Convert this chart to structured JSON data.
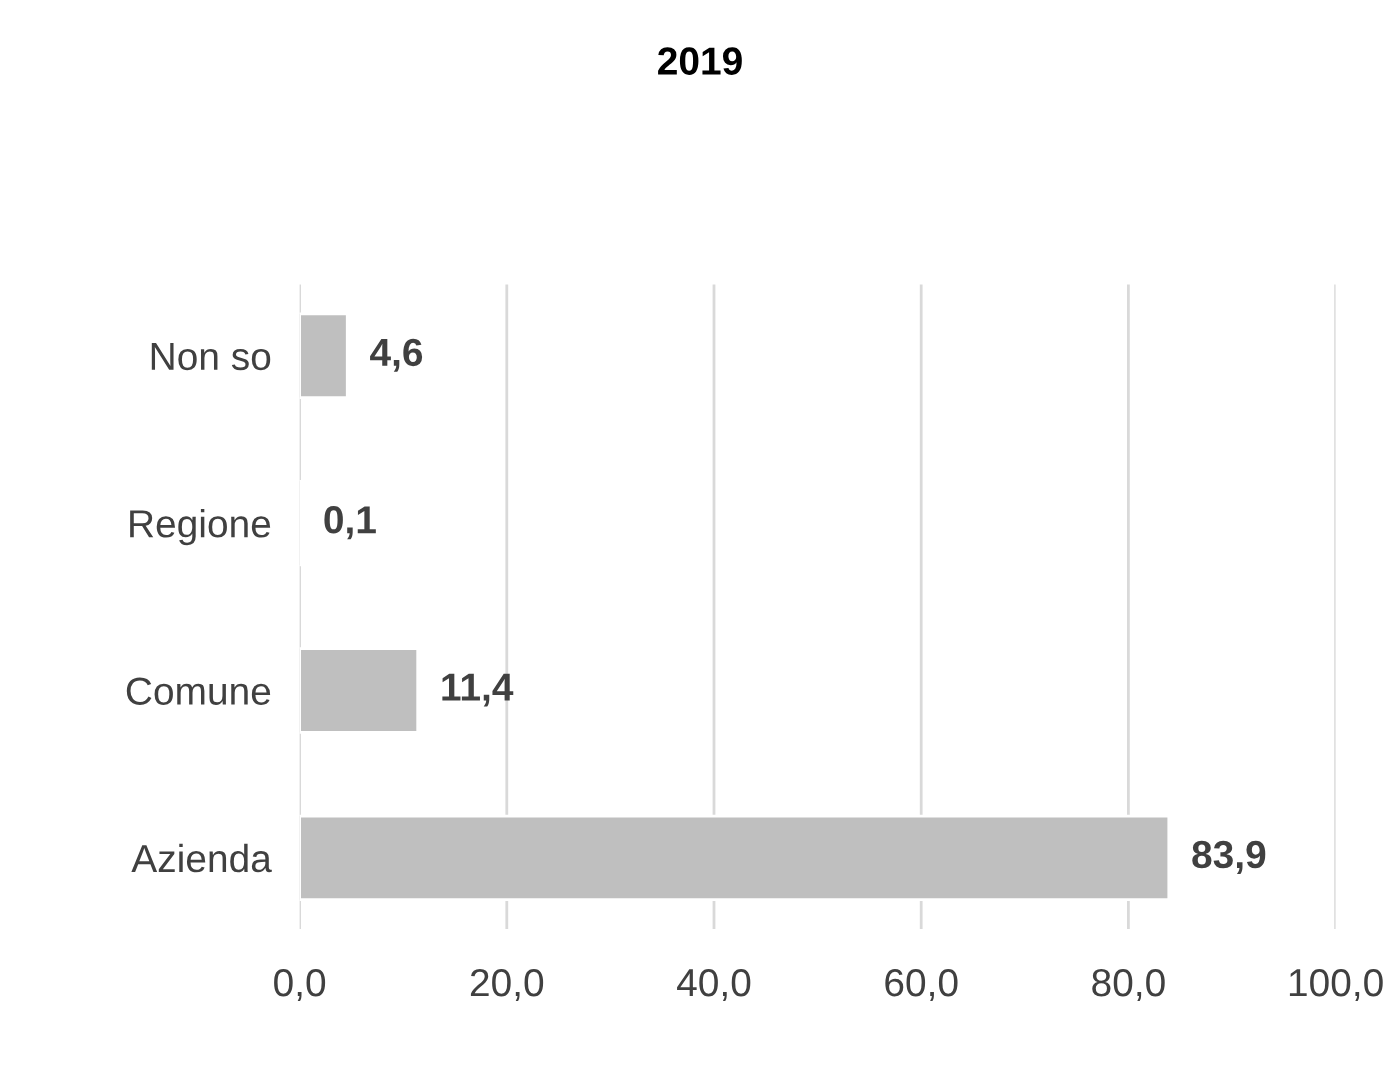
{
  "chart_data": {
    "type": "bar",
    "orientation": "horizontal",
    "title": "2019",
    "categories": [
      "Non so",
      "Regione",
      "Comune",
      "Azienda"
    ],
    "values": [
      4.6,
      0.1,
      11.4,
      83.9
    ],
    "value_labels": [
      "4,6",
      "0,1",
      "11,4",
      "83,9"
    ],
    "color": "#bfbfbf",
    "xlim": [
      0,
      100
    ],
    "xticks": [
      {
        "value": 0,
        "label": "0,0"
      },
      {
        "value": 20,
        "label": "20,0"
      },
      {
        "value": 40,
        "label": "40,0"
      },
      {
        "value": 60,
        "label": "60,0"
      },
      {
        "value": 80,
        "label": "80,0"
      },
      {
        "value": 100,
        "label": "100,0"
      }
    ],
    "grid": "x"
  }
}
